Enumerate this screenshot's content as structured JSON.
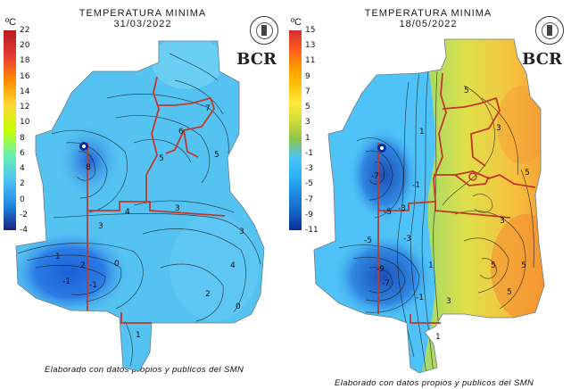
{
  "left": {
    "title": "TEMPERATURA MINIMA",
    "date": "31/03/2022",
    "unit": "ºC",
    "scale_ticks": [
      "22",
      "20",
      "18",
      "16",
      "14",
      "12",
      "10",
      "8",
      "6",
      "4",
      "2",
      "0",
      "-2",
      "-4"
    ],
    "logo": "BCR",
    "footer": "Elaborado con datos propios y publicos del SMN",
    "contour_labels": [
      "1",
      "2",
      "3",
      "4",
      "5",
      "6",
      "7",
      "8",
      "0",
      "-1",
      "-1",
      "3",
      "4",
      "5",
      "3",
      "2",
      "1",
      "0"
    ]
  },
  "right": {
    "title": "TEMPERATURA MINIMA",
    "date": "18/05/2022",
    "unit": "ºC",
    "scale_ticks": [
      "15",
      "13",
      "11",
      "9",
      "7",
      "5",
      "3",
      "1",
      "-1",
      "-3",
      "-5",
      "-7",
      "-9",
      "-11"
    ],
    "logo": "BCR",
    "footer": "Elaborado con datos propios y publicos del SMN",
    "contour_labels": [
      "5",
      "3",
      "1",
      "-1",
      "-3",
      "-5",
      "-7",
      "-9",
      "3",
      "5",
      "5",
      "5",
      "5",
      "1",
      "-1",
      "-3",
      "-5",
      "-7",
      "1",
      "3"
    ]
  },
  "colors": {
    "scale_left": [
      "#b71c1c",
      "#e53935",
      "#fb8c00",
      "#fdd835",
      "#c6ff00",
      "#69f0ae",
      "#4fc3f7",
      "#1e88e5",
      "#1a237e"
    ],
    "scale_right": [
      "#d32f2f",
      "#ff5722",
      "#ff9800",
      "#ffc107",
      "#ffeb3b",
      "#cddc39",
      "#8bc34a",
      "#4fc3f7",
      "#29b6f6",
      "#1e88e5",
      "#1565c0",
      "#0d2c9c"
    ],
    "map_left_base": "#55c3f2",
    "map_left_dark": "#1565c0",
    "map_right_base": "#4fc3f7",
    "map_right_warm": "#f4b63f",
    "border": "#c0392b"
  }
}
